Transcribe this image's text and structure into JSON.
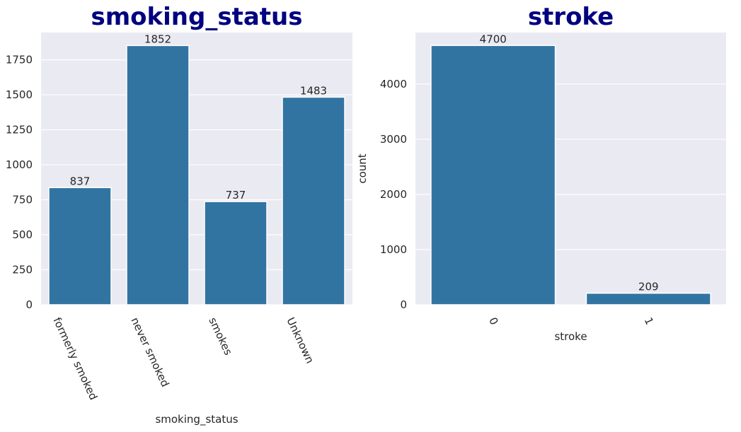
{
  "colors": {
    "bar": "#3274a1",
    "plot_background": "#eaeaf2",
    "grid": "#ffffff",
    "title": "#000080",
    "text": "#262626"
  },
  "chart_data": [
    {
      "type": "bar",
      "title": "smoking_status",
      "xlabel": "smoking_status",
      "ylabel": "",
      "categories": [
        "formerly smoked",
        "never smoked",
        "smokes",
        "Unknown"
      ],
      "values": [
        837,
        1852,
        737,
        1483
      ],
      "data_labels": [
        "837",
        "1852",
        "737",
        "1483"
      ],
      "yticks": [
        0,
        250,
        500,
        750,
        1000,
        1250,
        1500,
        1750
      ],
      "ylim": [
        0,
        1945
      ],
      "grid": true,
      "x_tick_rotation": "rotated-down-right"
    },
    {
      "type": "bar",
      "title": "stroke",
      "xlabel": "stroke",
      "ylabel": "count",
      "categories": [
        "0",
        "1"
      ],
      "values": [
        4700,
        209
      ],
      "data_labels": [
        "4700",
        "209"
      ],
      "yticks": [
        0,
        1000,
        2000,
        3000,
        4000
      ],
      "ylim": [
        0,
        4935
      ],
      "grid": true,
      "x_tick_rotation": "rotated-down-right"
    }
  ]
}
